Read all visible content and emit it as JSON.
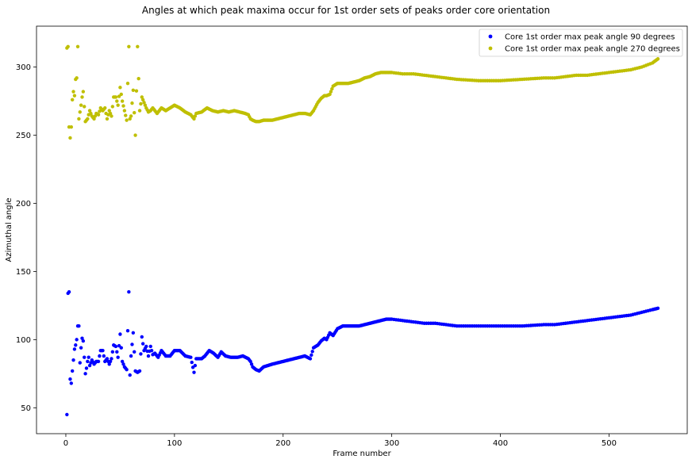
{
  "chart_data": {
    "type": "scatter",
    "title": "Angles at which peak maxima occur for 1st order sets of peaks order core orientation",
    "xlabel": "Frame number",
    "ylabel": "Azimuthal angle",
    "xlim": [
      -27,
      572
    ],
    "ylim": [
      31,
      330
    ],
    "xticks": [
      0,
      100,
      200,
      300,
      400,
      500
    ],
    "yticks": [
      50,
      100,
      150,
      200,
      250,
      300
    ],
    "grid": false,
    "legend_position": "top-right",
    "series": [
      {
        "name": "Core 1st order max peak angle 90 degrees",
        "color": "#0000ff",
        "anchors": [
          [
            1,
            45
          ],
          [
            2,
            134
          ],
          [
            3,
            135
          ],
          [
            4,
            71
          ],
          [
            5,
            68
          ],
          [
            6,
            77
          ],
          [
            8,
            93
          ],
          [
            9,
            96
          ],
          [
            10,
            100
          ],
          [
            11,
            110
          ],
          [
            12,
            110
          ],
          [
            13,
            83
          ],
          [
            14,
            94
          ],
          [
            15,
            101
          ],
          [
            16,
            99
          ],
          [
            18,
            75
          ],
          [
            19,
            79
          ],
          [
            20,
            84
          ],
          [
            21,
            87
          ],
          [
            22,
            81
          ],
          [
            24,
            85
          ],
          [
            26,
            82
          ],
          [
            28,
            84
          ],
          [
            30,
            84
          ],
          [
            32,
            92
          ],
          [
            34,
            92
          ],
          [
            36,
            84
          ],
          [
            38,
            86
          ],
          [
            40,
            82
          ],
          [
            42,
            86
          ],
          [
            44,
            96
          ],
          [
            46,
            95
          ],
          [
            48,
            87
          ],
          [
            50,
            104
          ],
          [
            52,
            84
          ],
          [
            54,
            80
          ],
          [
            56,
            78
          ],
          [
            58,
            135
          ],
          [
            59,
            74
          ],
          [
            60,
            88
          ],
          [
            62,
            105
          ],
          [
            64,
            77
          ],
          [
            66,
            76
          ],
          [
            68,
            77
          ],
          [
            70,
            102
          ],
          [
            72,
            92
          ],
          [
            74,
            95
          ],
          [
            76,
            88
          ],
          [
            78,
            95
          ],
          [
            80,
            89
          ],
          [
            82,
            90
          ],
          [
            85,
            87
          ],
          [
            88,
            92
          ],
          [
            92,
            88
          ],
          [
            96,
            88
          ],
          [
            100,
            92
          ],
          [
            105,
            92
          ],
          [
            110,
            88
          ],
          [
            115,
            87
          ],
          [
            118,
            76
          ],
          [
            120,
            86
          ],
          [
            125,
            86
          ],
          [
            128,
            88
          ],
          [
            132,
            92
          ],
          [
            136,
            90
          ],
          [
            140,
            87
          ],
          [
            143,
            91
          ],
          [
            147,
            88
          ],
          [
            152,
            87
          ],
          [
            158,
            87
          ],
          [
            163,
            88
          ],
          [
            168,
            86
          ],
          [
            170,
            84
          ],
          [
            172,
            80
          ],
          [
            175,
            78
          ],
          [
            178,
            77
          ],
          [
            182,
            80
          ],
          [
            186,
            81
          ],
          [
            190,
            82
          ],
          [
            195,
            83
          ],
          [
            200,
            84
          ],
          [
            205,
            85
          ],
          [
            210,
            86
          ],
          [
            215,
            87
          ],
          [
            220,
            88
          ],
          [
            225,
            86
          ],
          [
            228,
            94
          ],
          [
            232,
            96
          ],
          [
            235,
            99
          ],
          [
            238,
            101
          ],
          [
            240,
            100
          ],
          [
            243,
            105
          ],
          [
            246,
            103
          ],
          [
            250,
            108
          ],
          [
            255,
            110
          ],
          [
            260,
            110
          ],
          [
            265,
            110
          ],
          [
            270,
            110
          ],
          [
            275,
            111
          ],
          [
            280,
            112
          ],
          [
            285,
            113
          ],
          [
            290,
            114
          ],
          [
            295,
            115
          ],
          [
            300,
            115
          ],
          [
            310,
            114
          ],
          [
            320,
            113
          ],
          [
            330,
            112
          ],
          [
            340,
            112
          ],
          [
            350,
            111
          ],
          [
            360,
            110
          ],
          [
            380,
            110
          ],
          [
            400,
            110
          ],
          [
            420,
            110
          ],
          [
            440,
            111
          ],
          [
            450,
            111
          ],
          [
            460,
            112
          ],
          [
            470,
            113
          ],
          [
            480,
            114
          ],
          [
            490,
            115
          ],
          [
            500,
            116
          ],
          [
            510,
            117
          ],
          [
            520,
            118
          ],
          [
            530,
            120
          ],
          [
            540,
            122
          ],
          [
            545,
            123
          ]
        ],
        "values_note_omit": ""
      },
      {
        "name": "Core 1st order max peak angle 270 degrees",
        "color": "#bfbf00",
        "anchors": [
          [
            1,
            314
          ],
          [
            2,
            315
          ],
          [
            3,
            256
          ],
          [
            4,
            248
          ],
          [
            5,
            256
          ],
          [
            6,
            276
          ],
          [
            7,
            282
          ],
          [
            8,
            279
          ],
          [
            9,
            291
          ],
          [
            10,
            292
          ],
          [
            11,
            315
          ],
          [
            12,
            262
          ],
          [
            14,
            272
          ],
          [
            15,
            278
          ],
          [
            16,
            282
          ],
          [
            18,
            260
          ],
          [
            20,
            262
          ],
          [
            22,
            268
          ],
          [
            24,
            264
          ],
          [
            26,
            262
          ],
          [
            28,
            266
          ],
          [
            30,
            265
          ],
          [
            32,
            270
          ],
          [
            34,
            268
          ],
          [
            36,
            270
          ],
          [
            38,
            262
          ],
          [
            40,
            268
          ],
          [
            42,
            264
          ],
          [
            44,
            278
          ],
          [
            46,
            278
          ],
          [
            48,
            272
          ],
          [
            50,
            285
          ],
          [
            52,
            275
          ],
          [
            54,
            268
          ],
          [
            56,
            261
          ],
          [
            58,
            315
          ],
          [
            59,
            262
          ],
          [
            60,
            264
          ],
          [
            62,
            283
          ],
          [
            64,
            250
          ],
          [
            66,
            315
          ],
          [
            68,
            268
          ],
          [
            70,
            278
          ],
          [
            72,
            274
          ],
          [
            74,
            270
          ],
          [
            76,
            267
          ],
          [
            78,
            268
          ],
          [
            80,
            270
          ],
          [
            84,
            266
          ],
          [
            88,
            270
          ],
          [
            92,
            268
          ],
          [
            96,
            270
          ],
          [
            100,
            272
          ],
          [
            105,
            270
          ],
          [
            110,
            267
          ],
          [
            115,
            265
          ],
          [
            118,
            262
          ],
          [
            120,
            266
          ],
          [
            125,
            267
          ],
          [
            130,
            270
          ],
          [
            135,
            268
          ],
          [
            140,
            267
          ],
          [
            145,
            268
          ],
          [
            150,
            267
          ],
          [
            155,
            268
          ],
          [
            160,
            267
          ],
          [
            165,
            266
          ],
          [
            168,
            265
          ],
          [
            170,
            262
          ],
          [
            172,
            261
          ],
          [
            175,
            260
          ],
          [
            178,
            260
          ],
          [
            182,
            261
          ],
          [
            186,
            261
          ],
          [
            190,
            261
          ],
          [
            195,
            262
          ],
          [
            200,
            263
          ],
          [
            205,
            264
          ],
          [
            210,
            265
          ],
          [
            215,
            266
          ],
          [
            220,
            266
          ],
          [
            225,
            265
          ],
          [
            228,
            268
          ],
          [
            232,
            274
          ],
          [
            235,
            277
          ],
          [
            238,
            279
          ],
          [
            240,
            279
          ],
          [
            243,
            280
          ],
          [
            246,
            286
          ],
          [
            250,
            288
          ],
          [
            255,
            288
          ],
          [
            260,
            288
          ],
          [
            265,
            289
          ],
          [
            270,
            290
          ],
          [
            275,
            292
          ],
          [
            280,
            293
          ],
          [
            285,
            295
          ],
          [
            290,
            296
          ],
          [
            295,
            296
          ],
          [
            300,
            296
          ],
          [
            310,
            295
          ],
          [
            320,
            295
          ],
          [
            330,
            294
          ],
          [
            340,
            293
          ],
          [
            350,
            292
          ],
          [
            360,
            291
          ],
          [
            380,
            290
          ],
          [
            400,
            290
          ],
          [
            420,
            291
          ],
          [
            440,
            292
          ],
          [
            450,
            292
          ],
          [
            460,
            293
          ],
          [
            470,
            294
          ],
          [
            480,
            294
          ],
          [
            490,
            295
          ],
          [
            500,
            296
          ],
          [
            510,
            297
          ],
          [
            520,
            298
          ],
          [
            530,
            300
          ],
          [
            540,
            303
          ],
          [
            545,
            306
          ]
        ]
      }
    ]
  }
}
